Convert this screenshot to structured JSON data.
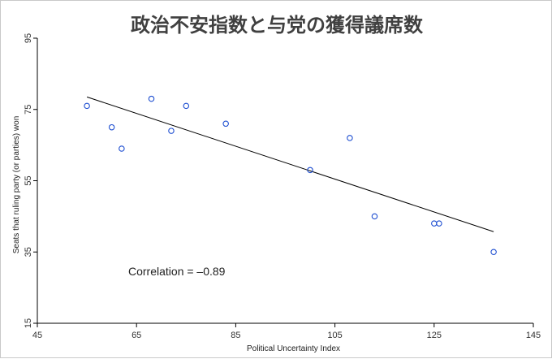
{
  "chart_data": {
    "type": "scatter",
    "title": "政治不安指数と与党の獲得議席数",
    "xlabel": "Political Uncertainty Index",
    "ylabel": "Seats that ruling party (or parties) won",
    "xlim": [
      45,
      145
    ],
    "ylim": [
      15,
      95
    ],
    "xticks": [
      45,
      65,
      85,
      105,
      125,
      145
    ],
    "yticks": [
      15,
      35,
      55,
      75,
      95
    ],
    "grid": false,
    "points": [
      {
        "x": 55,
        "y": 76
      },
      {
        "x": 60,
        "y": 70
      },
      {
        "x": 62,
        "y": 64
      },
      {
        "x": 68,
        "y": 78
      },
      {
        "x": 72,
        "y": 69
      },
      {
        "x": 75,
        "y": 76
      },
      {
        "x": 83,
        "y": 71
      },
      {
        "x": 100,
        "y": 58
      },
      {
        "x": 108,
        "y": 67
      },
      {
        "x": 113,
        "y": 45
      },
      {
        "x": 125,
        "y": 43
      },
      {
        "x": 126,
        "y": 43
      },
      {
        "x": 137,
        "y": 35
      }
    ],
    "trendline": {
      "x": [
        55,
        137
      ],
      "y": [
        78.5,
        40.7
      ]
    },
    "annotation": "Correlation = –0.89",
    "marker_color": "#1f4fd1",
    "line_color": "#000000"
  }
}
